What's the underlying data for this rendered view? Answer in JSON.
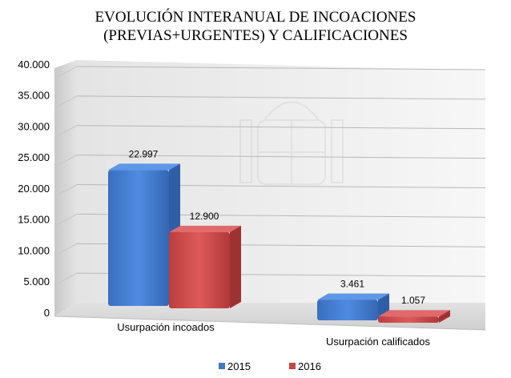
{
  "chart_data": {
    "type": "bar",
    "title_lines": [
      "EVOLUCIÓN INTERANUAL DE INCOACIONES",
      "(PREVIAS+URGENTES) Y CALIFICACIONES"
    ],
    "categories": [
      "Usurpación incoados",
      "Usurpación calificados"
    ],
    "series": [
      {
        "name": "2015",
        "values": [
          22997,
          3461
        ],
        "labels": [
          "22.997",
          "3.461"
        ],
        "color": "#3f78c6"
      },
      {
        "name": "2016",
        "values": [
          12900,
          1057
        ],
        "labels": [
          "12.900",
          "1.057"
        ],
        "color": "#c64545"
      }
    ],
    "y_ticks": [
      0,
      5000,
      10000,
      15000,
      20000,
      25000,
      30000,
      35000,
      40000
    ],
    "y_tick_labels": [
      "0",
      "5.000",
      "10.000",
      "15.000",
      "20.000",
      "25.000",
      "30.000",
      "35.000",
      "40.000"
    ],
    "ylim": [
      0,
      40000
    ],
    "grid": true,
    "legend_position": "bottom",
    "style": "3d-perspective"
  }
}
